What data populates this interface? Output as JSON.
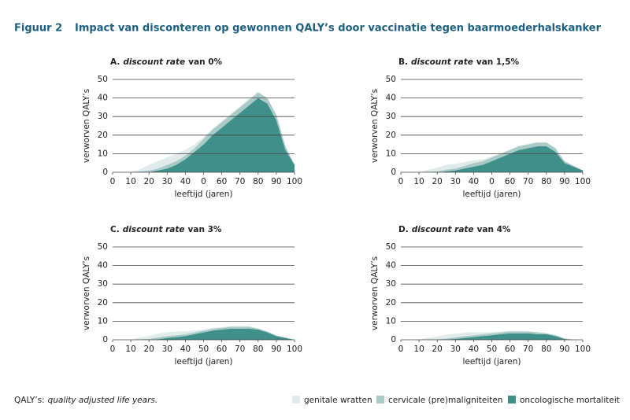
{
  "figure_label": "Figuur 2",
  "title": "Impact van disconteren op gewonnen QALY’s door vaccinatie tegen baarmoederhalskanker",
  "footnote": {
    "term": "QALY’s:",
    "text": "quality adjusted life years."
  },
  "chart_data": [
    {
      "type": "stacked_area",
      "panel": "A.",
      "title_em": "discount rate",
      "title": "van 0%",
      "x_label": "leeftijd (jaren)",
      "y_label": "verworven QALY’s",
      "xlim": [
        0,
        100
      ],
      "ylim": [
        0,
        50
      ],
      "xticks": [
        0,
        10,
        20,
        30,
        40,
        {
          "value": 50,
          "label": "0"
        },
        60,
        70,
        80,
        90,
        100
      ],
      "yticks": [
        0,
        10,
        20,
        30,
        40,
        50
      ],
      "grid": true,
      "x": [
        10,
        15,
        20,
        25,
        30,
        35,
        40,
        45,
        50,
        55,
        60,
        65,
        70,
        75,
        80,
        85,
        90,
        95,
        100
      ],
      "series": [
        {
          "name": "oncologische mortaliteit",
          "color": "#3f8f8b",
          "values": [
            0,
            0,
            0,
            1,
            2,
            4,
            7,
            11,
            15,
            20,
            24,
            28,
            32,
            36,
            40,
            37,
            28,
            12,
            4
          ]
        },
        {
          "name": "cervicale (pre)maligniteiten",
          "color": "#a9cbc8",
          "values": [
            0,
            0.5,
            1,
            1,
            2,
            2,
            2,
            2,
            3,
            3,
            3,
            3,
            3,
            3,
            3,
            3,
            3,
            2,
            0
          ]
        },
        {
          "name": "genitale wratten",
          "color": "#e0ebeb",
          "values": [
            0,
            1,
            3,
            4,
            4,
            4,
            3,
            2,
            1,
            0.5,
            0.5,
            0.5,
            0.5,
            0.5,
            0.5,
            0,
            0,
            0,
            0
          ]
        }
      ]
    },
    {
      "type": "stacked_area",
      "panel": "B.",
      "title_em": "discount rate",
      "title": "van 1,5%",
      "x_label": "leeftijd (jaren)",
      "y_label": "verworven QALY’s",
      "xlim": [
        0,
        100
      ],
      "ylim": [
        0,
        50
      ],
      "xticks": [
        0,
        10,
        20,
        30,
        40,
        {
          "value": 50,
          "label": "0"
        },
        60,
        70,
        80,
        90,
        100
      ],
      "yticks": [
        0,
        10,
        20,
        30,
        40,
        50
      ],
      "grid": true,
      "x": [
        10,
        15,
        20,
        25,
        30,
        35,
        40,
        45,
        50,
        55,
        60,
        65,
        70,
        75,
        80,
        85,
        90,
        95,
        100
      ],
      "series": [
        {
          "values": [
            0,
            0,
            0,
            0.5,
            1,
            2,
            3,
            4,
            6,
            8,
            10,
            12,
            13,
            14,
            14,
            11,
            5,
            3,
            1
          ]
        },
        {
          "values": [
            0,
            0.3,
            0.5,
            1,
            1,
            1.5,
            2,
            2,
            2,
            2,
            2,
            2,
            2,
            2,
            2,
            2,
            1,
            0.5,
            0
          ]
        },
        {
          "values": [
            0,
            1,
            2,
            2.5,
            2.5,
            2,
            1.5,
            1,
            0.5,
            0.3,
            0.3,
            0.3,
            0.3,
            0.3,
            0.3,
            0,
            0,
            0,
            0
          ]
        }
      ]
    },
    {
      "type": "stacked_area",
      "panel": "C.",
      "title_em": "discount rate",
      "title": "van 3%",
      "x_label": "leeftijd (jaren)",
      "y_label": "verworven QALY’s",
      "xlim": [
        0,
        100
      ],
      "ylim": [
        0,
        50
      ],
      "xticks": [
        0,
        10,
        20,
        30,
        40,
        50,
        60,
        70,
        80,
        90,
        100
      ],
      "yticks": [
        0,
        10,
        20,
        30,
        40,
        50
      ],
      "grid": true,
      "x": [
        10,
        15,
        20,
        25,
        30,
        35,
        40,
        45,
        50,
        55,
        60,
        65,
        70,
        75,
        80,
        85,
        90,
        95,
        100
      ],
      "series": [
        {
          "values": [
            0,
            0,
            0,
            0.3,
            1,
            1.5,
            2,
            3,
            4,
            5,
            5.5,
            6,
            6,
            6,
            5.5,
            4,
            2,
            1,
            0
          ]
        },
        {
          "values": [
            0,
            0.3,
            0.5,
            1,
            1,
            1,
            1,
            1,
            1,
            1,
            1,
            1,
            1,
            1,
            0.5,
            0.5,
            0.3,
            0.2,
            0
          ]
        },
        {
          "values": [
            0,
            1,
            1.5,
            2,
            2,
            2,
            1.5,
            1,
            0.5,
            0.5,
            0.3,
            0.3,
            0.3,
            0.3,
            0.2,
            0,
            0,
            0,
            0
          ]
        }
      ]
    },
    {
      "type": "stacked_area",
      "panel": "D.",
      "title_em": "discount rate",
      "title": "van 4%",
      "x_label": "leeftijd (jaren)",
      "y_label": "verworven QALY’s",
      "xlim": [
        0,
        100
      ],
      "ylim": [
        0,
        50
      ],
      "xticks": [
        0,
        10,
        20,
        30,
        40,
        50,
        60,
        70,
        80,
        90,
        100
      ],
      "yticks": [
        0,
        10,
        20,
        30,
        40,
        50
      ],
      "grid": true,
      "x": [
        10,
        15,
        20,
        25,
        30,
        35,
        40,
        45,
        50,
        55,
        60,
        65,
        70,
        75,
        80,
        85,
        90,
        95,
        100
      ],
      "series": [
        {
          "values": [
            0,
            0,
            0,
            0.2,
            0.5,
            1,
            1.5,
            2,
            2.5,
            3,
            3.5,
            3.5,
            3.5,
            3,
            3,
            2,
            0.5,
            0,
            0
          ]
        },
        {
          "values": [
            0,
            0.2,
            0.3,
            0.5,
            0.8,
            1,
            1,
            1,
            1,
            1,
            1,
            1,
            1,
            1,
            0.5,
            0.5,
            0.2,
            0,
            0
          ]
        },
        {
          "values": [
            0,
            1,
            1.5,
            2,
            2,
            1.8,
            1.5,
            1,
            0.8,
            0.5,
            0.3,
            0.3,
            0.2,
            0.2,
            0.2,
            0,
            0,
            0,
            0
          ]
        }
      ]
    }
  ]
}
